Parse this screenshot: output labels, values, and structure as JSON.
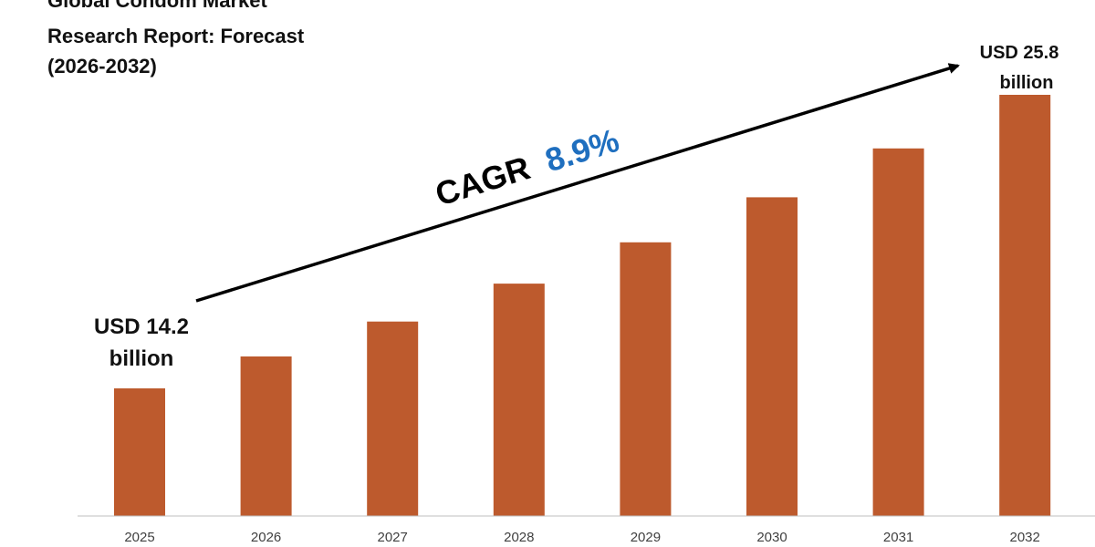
{
  "chart_data": {
    "type": "bar",
    "title_lines": [
      "Global Condom Market",
      "Research Report: Forecast",
      "(2026-2032)"
    ],
    "categories": [
      "2025",
      "2026",
      "2027",
      "2028",
      "2029",
      "2030",
      "2031",
      "2032"
    ],
    "values": [
      14.2,
      15.46,
      16.84,
      18.34,
      19.97,
      21.75,
      23.68,
      25.8
    ],
    "unit": "USD billion",
    "ylim": [
      0,
      27
    ],
    "grid": false,
    "annotations": {
      "start_value": {
        "line1": "USD 14.2",
        "line2": "billion"
      },
      "end_value": {
        "line1": "USD 25.8",
        "line2": "billion"
      },
      "cagr_label": "CAGR",
      "cagr_value": "8.9%"
    },
    "xlabel": "",
    "ylabel": ""
  },
  "colors": {
    "bar": "#BD5A2D",
    "cagr_value": "#1F6FBF",
    "axis": "#BFBFBF",
    "arrow": "#000000"
  }
}
